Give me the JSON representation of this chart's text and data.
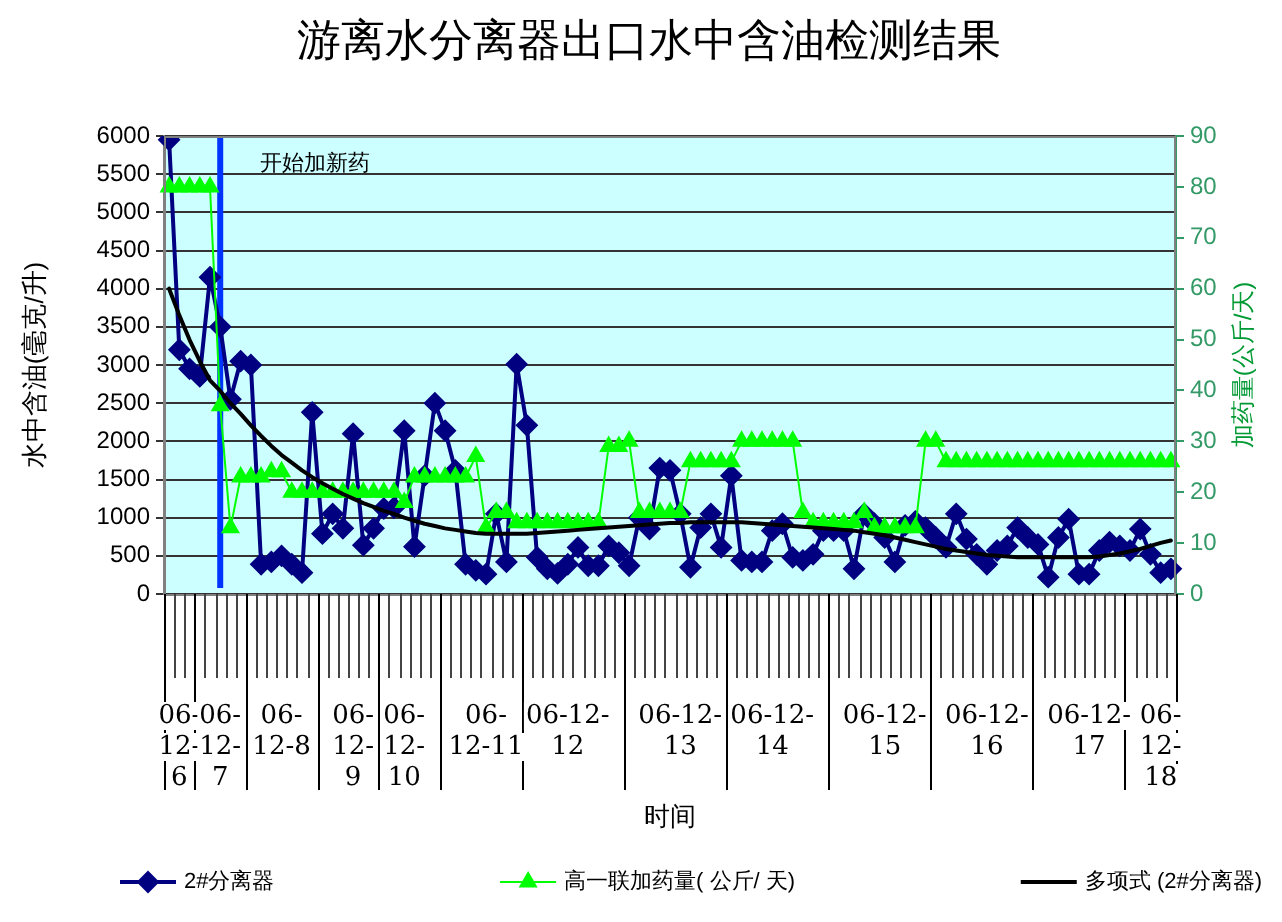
{
  "chart_data": {
    "type": "line",
    "title": "游离水分离器出口水中含油检测结果",
    "xlabel": "时间",
    "ylabel": "水中含油(毫克/升)",
    "y2label": "加药量(公斤/天)",
    "categories": [
      null,
      "06-12-6",
      null,
      null,
      null,
      "06-12-7",
      null,
      null,
      null,
      null,
      null,
      "06-12-8",
      null,
      null,
      null,
      null,
      null,
      null,
      "06-12-9",
      null,
      null,
      null,
      null,
      "06-12-10",
      null,
      null,
      null,
      null,
      null,
      null,
      null,
      "06-12-11",
      null,
      null,
      null,
      null,
      null,
      null,
      null,
      "06-12-12",
      null,
      null,
      null,
      null,
      null,
      null,
      null,
      null,
      null,
      null,
      "06-12-13",
      null,
      null,
      null,
      null,
      null,
      null,
      null,
      null,
      "06-12-14",
      null,
      null,
      null,
      null,
      null,
      null,
      null,
      null,
      null,
      null,
      "06-12-15",
      null,
      null,
      null,
      null,
      null,
      null,
      null,
      null,
      null,
      "06-12-16",
      null,
      null,
      null,
      null,
      null,
      null,
      null,
      null,
      null,
      "06-12-17",
      null,
      null,
      null,
      null,
      null,
      null,
      "06-12-18",
      null
    ],
    "series": [
      {
        "name": "2#分离器",
        "color": "#000080",
        "marker": "diamond",
        "values": [
          5950,
          3200,
          2950,
          2850,
          4150,
          3500,
          2550,
          3050,
          3000,
          390,
          420,
          500,
          390,
          280,
          2380,
          790,
          1050,
          860,
          2100,
          640,
          860,
          1120,
          1130,
          2140,
          620,
          1550,
          2500,
          2140,
          1620,
          390,
          310,
          260,
          1050,
          420,
          3010,
          2210,
          480,
          330,
          270,
          390,
          610,
          370,
          370,
          630,
          540,
          370,
          1000,
          850,
          1650,
          1620,
          1050,
          350,
          870,
          1050,
          610,
          1550,
          440,
          420,
          420,
          830,
          920,
          480,
          440,
          520,
          830,
          830,
          830,
          330,
          1050,
          920,
          740,
          420,
          900,
          950,
          870,
          740,
          610,
          1050,
          720,
          520,
          390,
          570,
          630,
          870,
          740,
          650,
          220,
          740,
          980,
          260,
          260,
          570,
          680,
          630,
          570,
          850,
          520,
          280,
          330
        ]
      },
      {
        "name": "高一联加药量( 公斤/ 天)",
        "color": "#00ff00",
        "marker": "triangle",
        "axis": "y2",
        "values": [
          80,
          80,
          80,
          80,
          80,
          37,
          13,
          23,
          23,
          23,
          24,
          24,
          20,
          20,
          20,
          20,
          20,
          20,
          20,
          20,
          20,
          20,
          20,
          18,
          23,
          23,
          23,
          23,
          23,
          23,
          27,
          13,
          16,
          16,
          14,
          14,
          14,
          14,
          14,
          14,
          14,
          14,
          14,
          29,
          29,
          30,
          16,
          16,
          16,
          16,
          16,
          26,
          26,
          26,
          26,
          26,
          30,
          30,
          30,
          30,
          30,
          30,
          16,
          14,
          14,
          14,
          14,
          14,
          16,
          13,
          13,
          13,
          13,
          13,
          30,
          30,
          26,
          26,
          26,
          26,
          26,
          26,
          26,
          26,
          26,
          26,
          26,
          26,
          26,
          26,
          26,
          26,
          26,
          26,
          26,
          26,
          26,
          26,
          26
        ]
      },
      {
        "name": "多项式 (2#分离器)",
        "color": "#000000",
        "marker": "none",
        "values": [
          4000,
          3650,
          3330,
          3050,
          2800,
          2660,
          2500,
          2360,
          2210,
          2070,
          1940,
          1820,
          1720,
          1620,
          1530,
          1450,
          1380,
          1310,
          1250,
          1190,
          1140,
          1090,
          1050,
          1000,
          960,
          920,
          890,
          860,
          840,
          820,
          800,
          790,
          790,
          790,
          790,
          790,
          800,
          810,
          820,
          830,
          840,
          850,
          860,
          870,
          880,
          890,
          900,
          910,
          920,
          930,
          930,
          940,
          940,
          940,
          940,
          940,
          940,
          930,
          920,
          910,
          900,
          890,
          880,
          870,
          860,
          850,
          840,
          830,
          810,
          790,
          770,
          740,
          710,
          680,
          650,
          620,
          590,
          570,
          550,
          530,
          510,
          500,
          490,
          480,
          480,
          480,
          480,
          480,
          480,
          480,
          480,
          490,
          510,
          530,
          560,
          590,
          630,
          670,
          700
        ]
      }
    ],
    "ylim": [
      0,
      6000
    ],
    "yticks": [
      0,
      500,
      1000,
      1500,
      2000,
      2500,
      3000,
      3500,
      4000,
      4500,
      5000,
      5500,
      6000
    ],
    "y2lim": [
      0,
      90
    ],
    "y2ticks": [
      0,
      10,
      20,
      30,
      40,
      50,
      60,
      70,
      80,
      90
    ],
    "grid": "y",
    "legend": "bottom",
    "ref_lines": [
      {
        "axis": "x",
        "value": "06-12-7",
        "label": "开始加新药",
        "color": "#0033ff"
      }
    ]
  }
}
